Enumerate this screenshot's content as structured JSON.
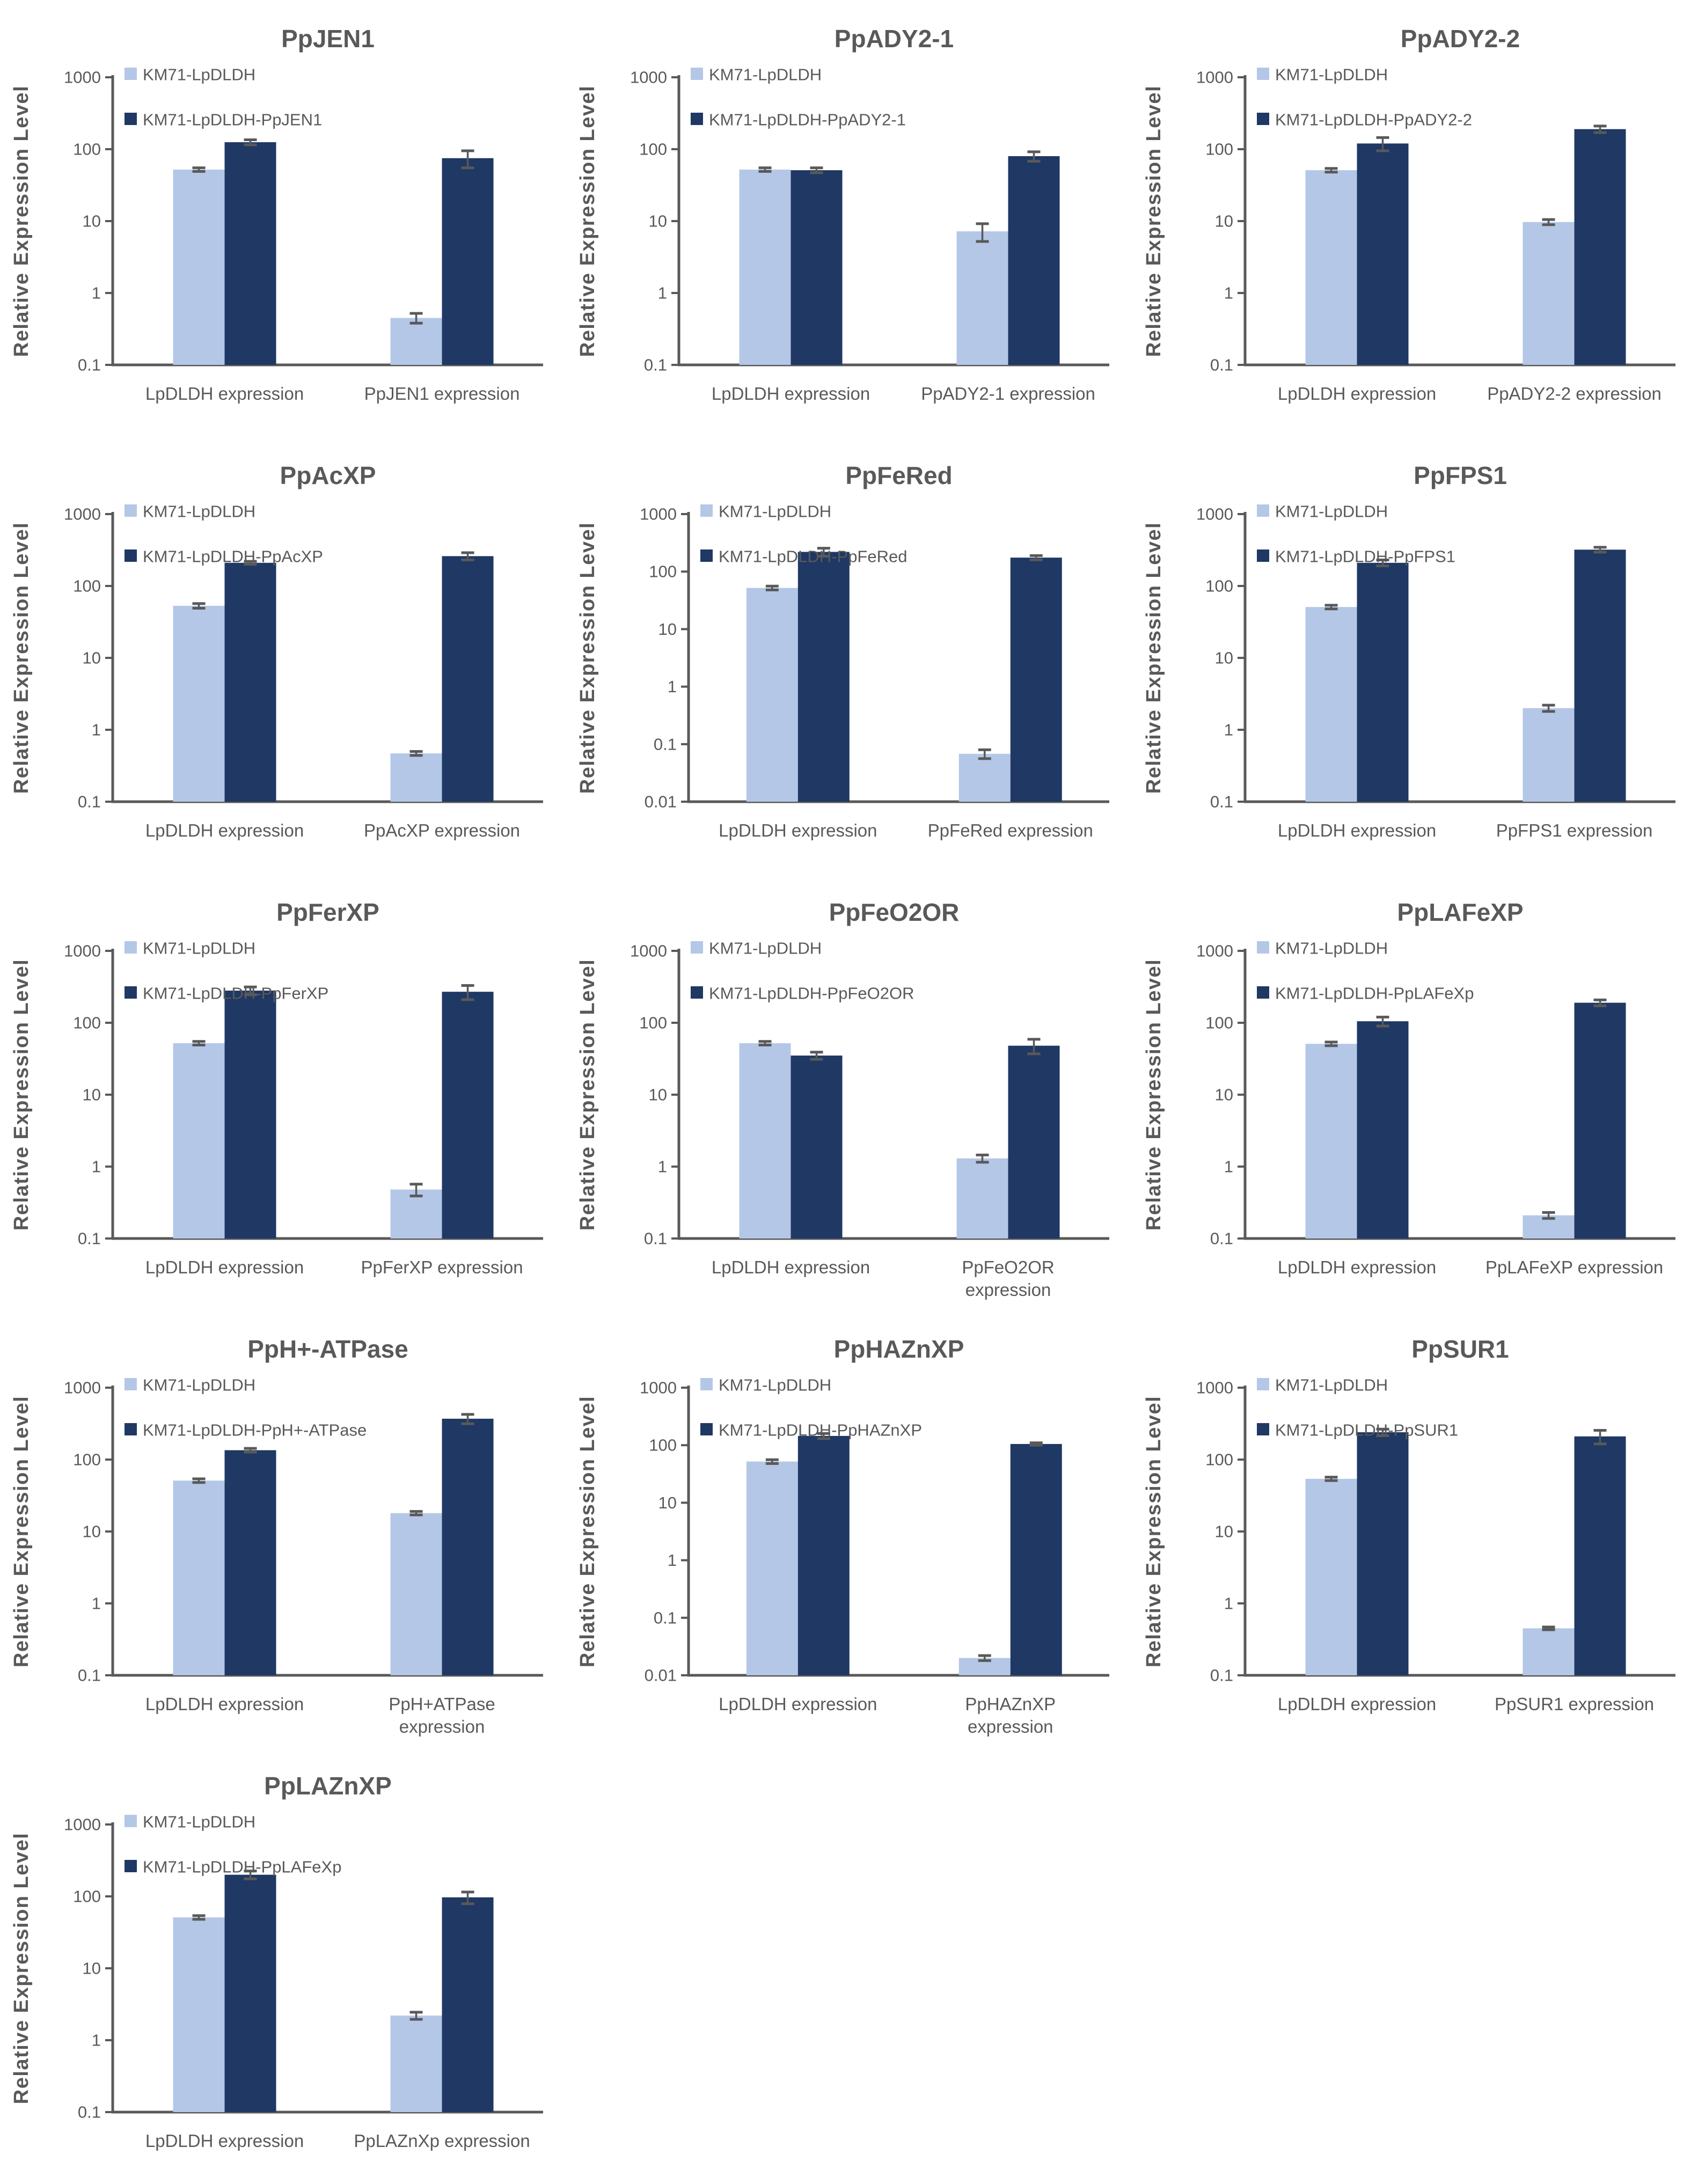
{
  "page": {
    "background": "#ffffff"
  },
  "colors": {
    "series_light": "#b4c7e7",
    "series_dark": "#1f3864",
    "text": "#595959",
    "axis": "#595959",
    "error_bar": "#595959"
  },
  "chart_data": [
    {
      "type": "bar",
      "title": "PpJEN1",
      "ylabel": "Relative Expression Level",
      "ylog": true,
      "ylim": [
        0.1,
        1000
      ],
      "yticks": [
        "1000",
        "100",
        "10",
        "1",
        "0.1"
      ],
      "grid": false,
      "legend_position": "top-left-inside",
      "categories": [
        "LpDLDH expression",
        "PpJEN1 expression"
      ],
      "series": [
        {
          "name": "KM71-LpDLDH",
          "values": [
            52,
            0.45
          ],
          "errors": [
            3,
            0.07
          ]
        },
        {
          "name": "KM71-LpDLDH-PpJEN1",
          "values": [
            125,
            75
          ],
          "errors": [
            10,
            20
          ]
        }
      ]
    },
    {
      "type": "bar",
      "title": "PpADY2-1",
      "ylabel": "Relative Expression Level",
      "ylog": true,
      "ylim": [
        0.1,
        1000
      ],
      "yticks": [
        "1000",
        "100",
        "10",
        "1",
        "0.1"
      ],
      "grid": false,
      "legend_position": "top-left-inside",
      "categories": [
        "LpDLDH expression",
        "PpADY2-1 expression"
      ],
      "series": [
        {
          "name": "KM71-LpDLDH",
          "values": [
            52,
            7.2
          ],
          "errors": [
            3,
            2
          ]
        },
        {
          "name": "KM71-LpDLDH-PpADY2-1",
          "values": [
            51,
            80
          ],
          "errors": [
            4,
            12
          ]
        }
      ]
    },
    {
      "type": "bar",
      "title": "PpADY2-2",
      "ylabel": "Relative Expression Level",
      "ylog": true,
      "ylim": [
        0.1,
        1000
      ],
      "yticks": [
        "1000",
        "100",
        "10",
        "1",
        "0.1"
      ],
      "grid": false,
      "legend_position": "top-left-inside",
      "categories": [
        "LpDLDH expression",
        "PpADY2-2 expression"
      ],
      "series": [
        {
          "name": "KM71-LpDLDH",
          "values": [
            51,
            9.7
          ],
          "errors": [
            3,
            0.8
          ]
        },
        {
          "name": "KM71-LpDLDH-PpADY2-2",
          "values": [
            120,
            190
          ],
          "errors": [
            25,
            20
          ]
        }
      ]
    },
    {
      "type": "bar",
      "title": "PpAcXP",
      "ylabel": "Relative Expression Level",
      "ylog": true,
      "ylim": [
        0.1,
        1000
      ],
      "yticks": [
        "1000",
        "100",
        "10",
        "1",
        "0.1"
      ],
      "grid": false,
      "legend_position": "top-left-inside",
      "categories": [
        "LpDLDH expression",
        "PpAcXP expression"
      ],
      "series": [
        {
          "name": "KM71-LpDLDH",
          "values": [
            53,
            0.47
          ],
          "errors": [
            4,
            0.03
          ]
        },
        {
          "name": "KM71-LpDLDH-PpAcXP",
          "values": [
            210,
            260
          ],
          "errors": [
            10,
            30
          ]
        }
      ]
    },
    {
      "type": "bar",
      "title": "PpFeRed",
      "ylabel": "Relative Expression Level",
      "ylog": true,
      "ylim": [
        0.01,
        1000
      ],
      "yticks": [
        "1000",
        "100",
        "10",
        "1",
        "0.1",
        "0.01"
      ],
      "grid": false,
      "legend_position": "top-left-inside",
      "categories": [
        "LpDLDH expression",
        "PpFeRed expression"
      ],
      "series": [
        {
          "name": "KM71-LpDLDH",
          "values": [
            52,
            0.068
          ],
          "errors": [
            4,
            0.012
          ]
        },
        {
          "name": "KM71-LpDLDH-PpFeRed",
          "values": [
            220,
            175
          ],
          "errors": [
            35,
            15
          ]
        }
      ]
    },
    {
      "type": "bar",
      "title": "PpFPS1",
      "ylabel": "Relative Expression Level",
      "ylog": true,
      "ylim": [
        0.1,
        1000
      ],
      "yticks": [
        "1000",
        "100",
        "10",
        "1",
        "0.1"
      ],
      "grid": false,
      "legend_position": "top-left-inside",
      "categories": [
        "LpDLDH expression",
        "PpFPS1 expression"
      ],
      "series": [
        {
          "name": "KM71-LpDLDH",
          "values": [
            51,
            2.0
          ],
          "errors": [
            3,
            0.2
          ]
        },
        {
          "name": "KM71-LpDLDH-PpFPS1",
          "values": [
            210,
            320
          ],
          "errors": [
            20,
            25
          ]
        }
      ]
    },
    {
      "type": "bar",
      "title": "PpFerXP",
      "ylabel": "Relative Expression Level",
      "ylog": true,
      "ylim": [
        0.1,
        1000
      ],
      "yticks": [
        "1000",
        "100",
        "10",
        "1",
        "0.1"
      ],
      "grid": false,
      "legend_position": "top-left-inside",
      "categories": [
        "LpDLDH expression",
        "PpFerXP expression"
      ],
      "series": [
        {
          "name": "KM71-LpDLDH",
          "values": [
            52,
            0.48
          ],
          "errors": [
            3,
            0.09
          ]
        },
        {
          "name": "KM71-LpDLDH-PpFerXP",
          "values": [
            280,
            270
          ],
          "errors": [
            35,
            60
          ]
        }
      ]
    },
    {
      "type": "bar",
      "title": "PpFeO2OR",
      "ylabel": "Relative Expression Level",
      "ylog": true,
      "ylim": [
        0.1,
        1000
      ],
      "yticks": [
        "1000",
        "100",
        "10",
        "1",
        "0.1"
      ],
      "grid": false,
      "legend_position": "top-left-inside",
      "categories": [
        "LpDLDH expression",
        "PpFeO2OR\nexpression"
      ],
      "series": [
        {
          "name": "KM71-LpDLDH",
          "values": [
            52,
            1.3
          ],
          "errors": [
            3,
            0.15
          ]
        },
        {
          "name": "KM71-LpDLDH-PpFeO2OR",
          "values": [
            35,
            48
          ],
          "errors": [
            4,
            11
          ]
        }
      ]
    },
    {
      "type": "bar",
      "title": "PpLAFeXP",
      "ylabel": "Relative Expression Level",
      "ylog": true,
      "ylim": [
        0.1,
        1000
      ],
      "yticks": [
        "1000",
        "100",
        "10",
        "1",
        "0.1"
      ],
      "grid": false,
      "legend_position": "top-left-inside",
      "categories": [
        "LpDLDH expression",
        "PpLAFeXP expression"
      ],
      "series": [
        {
          "name": "KM71-LpDLDH",
          "values": [
            51,
            0.21
          ],
          "errors": [
            3,
            0.02
          ]
        },
        {
          "name": "KM71-LpDLDH-PpLAFeXp",
          "values": [
            105,
            190
          ],
          "errors": [
            15,
            18
          ]
        }
      ]
    },
    {
      "type": "bar",
      "title": "PpH+-ATPase",
      "ylabel": "Relative Expression Level",
      "ylog": true,
      "ylim": [
        0.1,
        1000
      ],
      "yticks": [
        "1000",
        "100",
        "10",
        "1",
        "0.1"
      ],
      "grid": false,
      "legend_position": "top-left-inside",
      "categories": [
        "LpDLDH expression",
        "PpH+ATPase\nexpression"
      ],
      "series": [
        {
          "name": "KM71-LpDLDH",
          "values": [
            51,
            18
          ],
          "errors": [
            3,
            1
          ]
        },
        {
          "name": "KM71-LpDLDH-PpH+-ATPase",
          "values": [
            135,
            370
          ],
          "errors": [
            8,
            55
          ]
        }
      ]
    },
    {
      "type": "bar",
      "title": "PpHAZnXP",
      "ylabel": "Relative Expression Level",
      "ylog": true,
      "ylim": [
        0.01,
        1000
      ],
      "yticks": [
        "1000",
        "100",
        "10",
        "1",
        "0.1",
        "0.01"
      ],
      "grid": false,
      "legend_position": "top-left-inside",
      "categories": [
        "LpDLDH expression",
        "PpHAZnXP\nexpression"
      ],
      "series": [
        {
          "name": "KM71-LpDLDH",
          "values": [
            52,
            0.02
          ],
          "errors": [
            4,
            0.002
          ]
        },
        {
          "name": "KM71-LpDLDH-PpHAZnXP",
          "values": [
            145,
            105
          ],
          "errors": [
            15,
            5
          ]
        }
      ]
    },
    {
      "type": "bar",
      "title": "PpSUR1",
      "ylabel": "Relative Expression Level",
      "ylog": true,
      "ylim": [
        0.1,
        1000
      ],
      "yticks": [
        "1000",
        "100",
        "10",
        "1",
        "0.1"
      ],
      "grid": false,
      "legend_position": "top-left-inside",
      "categories": [
        "LpDLDH expression",
        "PpSUR1  expression"
      ],
      "series": [
        {
          "name": "KM71-LpDLDH",
          "values": [
            54,
            0.45
          ],
          "errors": [
            3,
            0.02
          ]
        },
        {
          "name": "KM71-LpDLDH-PpSUR1",
          "values": [
            240,
            210
          ],
          "errors": [
            25,
            45
          ]
        }
      ]
    },
    {
      "type": "bar",
      "title": "PpLAZnXP",
      "ylabel": "Relative Expression Level",
      "ylog": true,
      "ylim": [
        0.1,
        1000
      ],
      "yticks": [
        "1000",
        "100",
        "10",
        "1",
        "0.1"
      ],
      "grid": false,
      "legend_position": "top-left-inside",
      "categories": [
        "LpDLDH expression",
        "PpLAZnXp expression"
      ],
      "series": [
        {
          "name": "KM71-LpDLDH",
          "values": [
            51,
            2.2
          ],
          "errors": [
            3,
            0.25
          ]
        },
        {
          "name": "KM71-LpDLDH-PpLAFeXp",
          "values": [
            200,
            97
          ],
          "errors": [
            25,
            18
          ]
        }
      ]
    }
  ]
}
